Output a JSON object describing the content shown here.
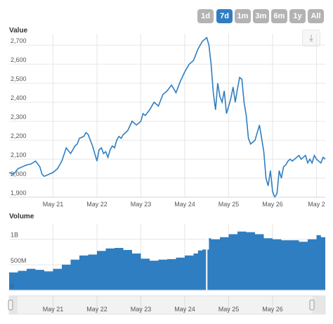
{
  "range_selector": {
    "buttons": [
      "1d",
      "7d",
      "1m",
      "3m",
      "6m",
      "1y",
      "All"
    ],
    "selected": "7d",
    "active_color": "#2f7ec1",
    "inactive_color": "#b3b3b3"
  },
  "export_button": {
    "icon": "download-icon",
    "glyph": "⤓"
  },
  "chart_data": [
    {
      "type": "line",
      "title": "Value",
      "ylim": [
        1900,
        2760
      ],
      "yticks": [
        1900,
        2000,
        2100,
        2200,
        2300,
        2400,
        2500,
        2600,
        2700
      ],
      "ytick_labels": [
        "1,900",
        "2,000",
        "2,100",
        "2,200",
        "2,300",
        "2,400",
        "2,500",
        "2,600",
        "2,700"
      ],
      "xlim": [
        20.0,
        27.2
      ],
      "xticks": [
        21,
        22,
        23,
        24,
        25,
        26,
        27
      ],
      "xtick_labels": [
        "May 21",
        "May 22",
        "May 23",
        "May 24",
        "May 25",
        "May 26",
        "May 2"
      ],
      "grid": true,
      "color": "#2f7ec1",
      "x": [
        20.0,
        20.1,
        20.2,
        20.3,
        20.4,
        20.5,
        20.6,
        20.7,
        20.75,
        20.8,
        20.9,
        21.0,
        21.1,
        21.2,
        21.3,
        21.4,
        21.5,
        21.55,
        21.6,
        21.7,
        21.75,
        21.8,
        21.9,
        22.0,
        22.05,
        22.1,
        22.15,
        22.2,
        22.25,
        22.3,
        22.35,
        22.4,
        22.45,
        22.5,
        22.55,
        22.6,
        22.7,
        22.8,
        22.9,
        23.0,
        23.05,
        23.1,
        23.2,
        23.3,
        23.4,
        23.5,
        23.6,
        23.7,
        23.8,
        23.9,
        24.0,
        24.1,
        24.2,
        24.3,
        24.4,
        24.5,
        24.55,
        24.6,
        24.65,
        24.7,
        24.75,
        24.8,
        24.85,
        24.9,
        24.95,
        25.0,
        25.05,
        25.1,
        25.15,
        25.2,
        25.25,
        25.3,
        25.35,
        25.4,
        25.45,
        25.5,
        25.6,
        25.7,
        25.8,
        25.85,
        25.9,
        25.95,
        26.0,
        26.05,
        26.1,
        26.15,
        26.2,
        26.25,
        26.3,
        26.35,
        26.4,
        26.45,
        26.5,
        26.55,
        26.6,
        26.65,
        26.7,
        26.75,
        26.8,
        26.85,
        26.9,
        26.95,
        27.0,
        27.05,
        27.1,
        27.15,
        27.2
      ],
      "values": [
        2030,
        2020,
        2050,
        2060,
        2070,
        2075,
        2090,
        2060,
        2020,
        2010,
        2020,
        2030,
        2050,
        2090,
        2160,
        2130,
        2170,
        2180,
        2210,
        2220,
        2240,
        2230,
        2170,
        2090,
        2150,
        2160,
        2130,
        2140,
        2110,
        2150,
        2170,
        2160,
        2200,
        2220,
        2210,
        2230,
        2250,
        2300,
        2280,
        2300,
        2340,
        2330,
        2360,
        2400,
        2380,
        2440,
        2460,
        2490,
        2450,
        2510,
        2560,
        2600,
        2620,
        2680,
        2720,
        2740,
        2700,
        2600,
        2450,
        2360,
        2500,
        2430,
        2400,
        2460,
        2340,
        2380,
        2420,
        2480,
        2400,
        2470,
        2530,
        2520,
        2400,
        2330,
        2210,
        2180,
        2200,
        2280,
        2140,
        2000,
        1960,
        2040,
        1930,
        1900,
        1920,
        2040,
        2000,
        2060,
        2070,
        2090,
        2100,
        2090,
        2100,
        2110,
        2120,
        2100,
        2110,
        2120,
        2080,
        2100,
        2080,
        2120,
        2100,
        2090,
        2080,
        2110,
        2100
      ]
    },
    {
      "type": "area",
      "title": "Volume",
      "ylim": [
        0,
        1300000000
      ],
      "yticks": [
        0,
        500000000,
        1000000000
      ],
      "ytick_labels": [
        "0",
        "500M",
        "1B"
      ],
      "xlim": [
        20.0,
        27.2
      ],
      "xticks": [
        21,
        22,
        23,
        24,
        25,
        26
      ],
      "xtick_labels": [
        "May 21",
        "May 22",
        "May 23",
        "May 24",
        "May 25",
        "May 26"
      ],
      "grid": true,
      "color": "#2f7ec1",
      "x": [
        20.0,
        20.2,
        20.4,
        20.6,
        20.8,
        21.0,
        21.2,
        21.4,
        21.6,
        21.8,
        22.0,
        22.2,
        22.4,
        22.6,
        22.8,
        23.0,
        23.2,
        23.4,
        23.6,
        23.8,
        24.0,
        24.2,
        24.3,
        24.4,
        24.45,
        24.55,
        24.6,
        24.8,
        25.0,
        25.2,
        25.4,
        25.6,
        25.8,
        26.0,
        26.2,
        26.4,
        26.6,
        26.8,
        27.0,
        27.1,
        27.2
      ],
      "values": [
        350000000,
        380000000,
        420000000,
        400000000,
        370000000,
        420000000,
        500000000,
        600000000,
        680000000,
        700000000,
        770000000,
        820000000,
        830000000,
        790000000,
        720000000,
        620000000,
        580000000,
        600000000,
        610000000,
        640000000,
        680000000,
        720000000,
        780000000,
        800000000,
        800000000,
        1020000000,
        1000000000,
        1040000000,
        1100000000,
        1150000000,
        1140000000,
        1100000000,
        1020000000,
        1000000000,
        980000000,
        980000000,
        950000000,
        1000000000,
        1080000000,
        1040000000,
        1030000000
      ]
    }
  ],
  "navigator": {
    "xtick_labels": [
      "May 21",
      "May 22",
      "May 23",
      "May 24",
      "May 25",
      "May 26"
    ]
  }
}
